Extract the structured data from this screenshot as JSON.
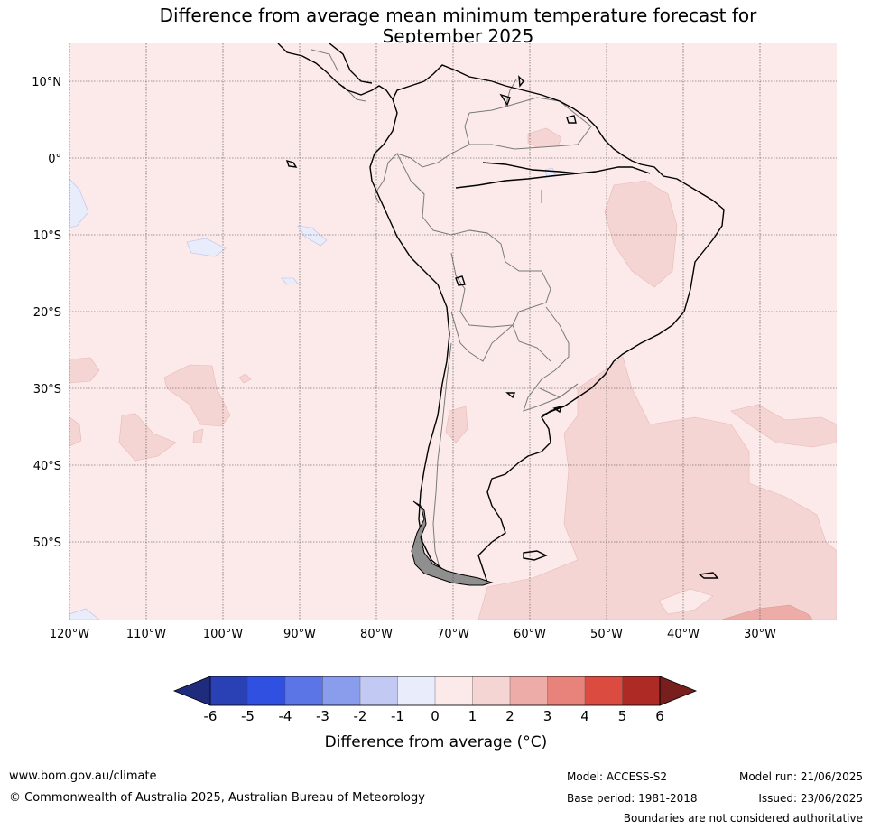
{
  "title": {
    "line1": "Difference from average mean minimum temperature forecast for",
    "line2": "September 2025"
  },
  "map": {
    "lat_labels": [
      "10°N",
      "0°",
      "10°S",
      "20°S",
      "30°S",
      "40°S",
      "50°S"
    ],
    "lon_labels": [
      "120°W",
      "110°W",
      "100°W",
      "90°W",
      "80°W",
      "70°W",
      "60°W",
      "50°W",
      "40°W",
      "30°W"
    ],
    "background_class_color": "#fbeae9"
  },
  "colorbar": {
    "colors": [
      "#1f2c7e",
      "#2a40b5",
      "#2f50e0",
      "#5b74e6",
      "#8a9cec",
      "#c2c9f3",
      "#e9ecfb",
      "#fbeae9",
      "#f5d5d3",
      "#edaca8",
      "#e8837c",
      "#db4b40",
      "#ad2b24",
      "#781f1e"
    ],
    "tick_labels": [
      "-6",
      "-5",
      "-4",
      "-3",
      "-2",
      "-1",
      "0",
      "1",
      "2",
      "3",
      "4",
      "5",
      "6"
    ],
    "label": "Difference from average (°C)"
  },
  "footer": {
    "website": "www.bom.gov.au/climate",
    "copyright": "© Commonwealth of Australia 2025, Australian Bureau of Meteorology",
    "model": "Model: ACCESS-S2",
    "base_period": "Base period: 1981-2018",
    "model_run": "Model run: 21/06/2025",
    "issued": "Issued: 23/06/2025",
    "disclaimer": "Boundaries are not considered authoritative"
  }
}
